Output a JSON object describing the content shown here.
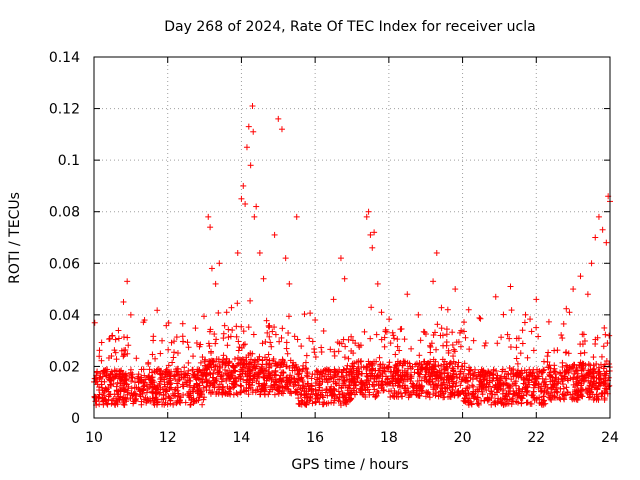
{
  "chart_data": {
    "type": "scatter",
    "title": "Day 268 of 2024, Rate Of TEC Index for receiver ucla",
    "xlabel": "GPS time / hours",
    "ylabel": "ROTI / TECUs",
    "xlim": [
      10,
      24
    ],
    "ylim": [
      0,
      0.14
    ],
    "x_ticks": [
      10,
      12,
      14,
      16,
      18,
      20,
      22,
      24
    ],
    "y_ticks": [
      0,
      0.02,
      0.04,
      0.06,
      0.08,
      0.1,
      0.12,
      0.14
    ],
    "x_tick_labels": [
      "10",
      "12",
      "14",
      "16",
      "18",
      "20",
      "22",
      "24"
    ],
    "y_tick_labels": [
      "0",
      "0.02",
      "0.04",
      "0.06",
      "0.08",
      "0.1",
      "0.12",
      "0.14"
    ],
    "grid": true,
    "marker": "+",
    "color": "#ff0000",
    "series": [
      {
        "name": "ROTI",
        "x": [
          10.0,
          10.2,
          10.5,
          10.7,
          10.8,
          10.9,
          11.0,
          11.2,
          11.5,
          11.8,
          12.0,
          12.3,
          12.6,
          12.9,
          13.0,
          13.1,
          13.15,
          13.2,
          13.3,
          13.4,
          13.6,
          13.8,
          13.9,
          14.0,
          14.05,
          14.1,
          14.15,
          14.2,
          14.25,
          14.3,
          14.32,
          14.35,
          14.4,
          14.5,
          14.6,
          14.7,
          14.9,
          15.0,
          15.1,
          15.2,
          15.3,
          15.5,
          15.8,
          16.0,
          16.2,
          16.5,
          16.7,
          16.8,
          17.0,
          17.2,
          17.4,
          17.45,
          17.5,
          17.55,
          17.6,
          17.7,
          17.8,
          18.0,
          18.2,
          18.5,
          18.8,
          19.0,
          19.2,
          19.3,
          19.4,
          19.6,
          19.8,
          20.0,
          20.3,
          20.6,
          20.9,
          21.0,
          21.3,
          21.5,
          21.8,
          22.0,
          22.3,
          22.6,
          22.9,
          23.0,
          23.2,
          23.4,
          23.5,
          23.6,
          23.7,
          23.8,
          23.9,
          23.95,
          24.0
        ],
        "y": [
          0.014,
          0.013,
          0.032,
          0.018,
          0.045,
          0.053,
          0.04,
          0.016,
          0.012,
          0.025,
          0.013,
          0.017,
          0.012,
          0.01,
          0.022,
          0.078,
          0.074,
          0.058,
          0.052,
          0.06,
          0.041,
          0.018,
          0.064,
          0.085,
          0.09,
          0.083,
          0.105,
          0.113,
          0.098,
          0.121,
          0.111,
          0.078,
          0.082,
          0.064,
          0.054,
          0.033,
          0.071,
          0.116,
          0.112,
          0.062,
          0.052,
          0.078,
          0.016,
          0.038,
          0.014,
          0.046,
          0.062,
          0.054,
          0.02,
          0.018,
          0.078,
          0.08,
          0.071,
          0.066,
          0.072,
          0.052,
          0.041,
          0.02,
          0.018,
          0.048,
          0.04,
          0.016,
          0.053,
          0.064,
          0.032,
          0.042,
          0.05,
          0.015,
          0.03,
          0.028,
          0.047,
          0.013,
          0.051,
          0.021,
          0.017,
          0.046,
          0.024,
          0.015,
          0.041,
          0.05,
          0.055,
          0.048,
          0.06,
          0.07,
          0.078,
          0.073,
          0.068,
          0.086,
          0.084
        ]
      }
    ]
  }
}
